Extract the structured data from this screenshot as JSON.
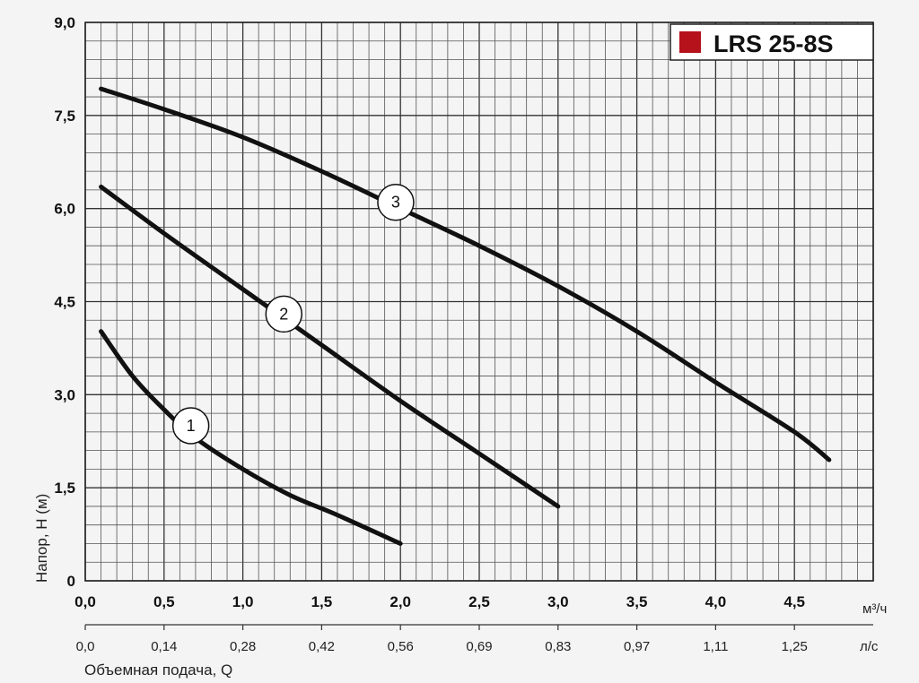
{
  "chart_data": {
    "type": "line",
    "title": "LRS 25-8S",
    "xlabel": "Объемная подача, Q",
    "ylabel": "Напор, H (м)",
    "x_unit": "м³/ч",
    "x2_unit": "л/с",
    "xlim": [
      0,
      5.0
    ],
    "ylim": [
      0,
      9.0
    ],
    "x_ticks": [
      "0,0",
      "0,5",
      "1,0",
      "1,5",
      "2,0",
      "2,5",
      "3,0",
      "3,5",
      "4,0",
      "4,5"
    ],
    "x2_ticks": [
      "0,0",
      "0,14",
      "0,28",
      "0,42",
      "0,56",
      "0,69",
      "0,83",
      "0,97",
      "1,11",
      "1,25"
    ],
    "y_ticks": [
      "0",
      "1,5",
      "3,0",
      "4,5",
      "6,0",
      "7,5",
      "9,0"
    ],
    "grid": true,
    "legend_color": "#b5121b",
    "series": [
      {
        "name": "1",
        "x": [
          0.1,
          0.3,
          0.5,
          0.7,
          1.0,
          1.3,
          1.6,
          2.0
        ],
        "y": [
          4.02,
          3.3,
          2.76,
          2.3,
          1.8,
          1.38,
          1.06,
          0.6
        ],
        "label_at": [
          0.67,
          2.5
        ]
      },
      {
        "name": "2",
        "x": [
          0.1,
          0.5,
          1.0,
          1.5,
          2.0,
          2.5,
          3.0
        ],
        "y": [
          6.35,
          5.6,
          4.7,
          3.8,
          2.9,
          2.05,
          1.2
        ],
        "label_at": [
          1.26,
          4.3
        ]
      },
      {
        "name": "3",
        "x": [
          0.1,
          0.5,
          1.0,
          1.5,
          2.0,
          2.5,
          3.0,
          3.5,
          4.0,
          4.5,
          4.72
        ],
        "y": [
          7.93,
          7.6,
          7.15,
          6.6,
          6.0,
          5.4,
          4.75,
          4.02,
          3.2,
          2.4,
          1.95
        ],
        "label_at": [
          1.97,
          6.1
        ]
      }
    ]
  }
}
